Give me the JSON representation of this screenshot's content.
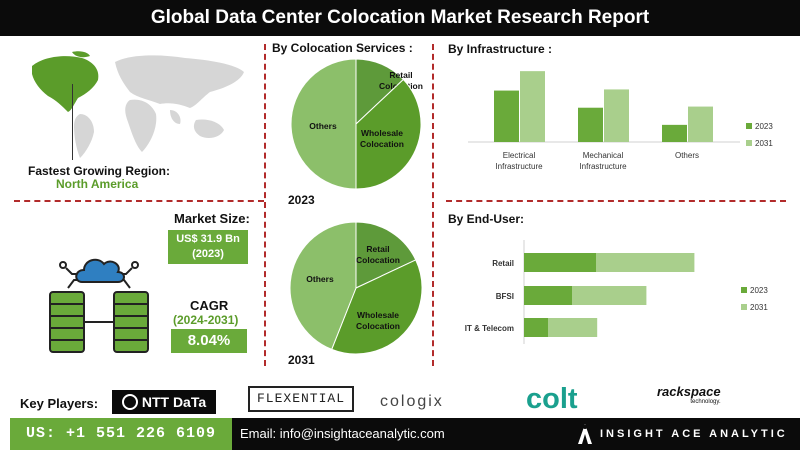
{
  "title": "Global Data Center Colocation Market Research Report",
  "region": {
    "label": "Fastest Growing Region:",
    "value": "North America"
  },
  "market_size": {
    "label": "Market Size:",
    "value_line1": "US$ 31.9 Bn",
    "value_line2": "(2023)"
  },
  "cagr": {
    "label": "CAGR",
    "period": "(2024-2031)",
    "value": "8.04%"
  },
  "key_players_label": "Key Players:",
  "logos": {
    "ntt": "NTT DaTa",
    "flexential": "FLEXENTIAL",
    "cologix": "cologix",
    "colt": "colt",
    "rackspace": "rackspace",
    "rackspace_sub": "technology."
  },
  "footer": {
    "phone": "US: +1 551 226 6109",
    "email": "Email: info@insightaceanalytic.com",
    "brand": "INSIGHT ACE ANALYTIC"
  },
  "colors": {
    "dark_green": "#6aaa3a",
    "mid_green": "#5b9c2a",
    "light_green": "#a9cf8c",
    "pie_others": "#8cbf6a",
    "pie_retail": "#5e9a3a",
    "divider": "#b22b2b"
  },
  "chart_data": [
    {
      "type": "pie",
      "title": "By Colocation Services :",
      "year_label": "2023",
      "labels": [
        "Retail Colocation",
        "Wholesale Colocation",
        "Others"
      ],
      "values": [
        13,
        37,
        50
      ]
    },
    {
      "type": "pie",
      "year_label": "2031",
      "labels": [
        "Retail Colocation",
        "Wholesale Colocation",
        "Others"
      ],
      "values": [
        18,
        38,
        44
      ]
    },
    {
      "type": "bar",
      "title": "By Infrastructure :",
      "categories": [
        "Electrical Infrastructure",
        "Mechanical Infrastructure",
        "Others"
      ],
      "series": [
        {
          "name": "2023",
          "values": [
            45,
            30,
            15
          ]
        },
        {
          "name": "2031",
          "values": [
            62,
            46,
            31
          ]
        }
      ],
      "ylim": [
        0,
        70
      ],
      "legend": "right"
    },
    {
      "type": "bar",
      "orientation": "horizontal",
      "stacked": true,
      "title": "By End-User:",
      "categories": [
        "Retail",
        "BFSI",
        "IT & Telecom"
      ],
      "series": [
        {
          "name": "2023",
          "values": [
            60,
            40,
            20
          ]
        },
        {
          "name": "2031",
          "values": [
            82,
            62,
            41
          ]
        }
      ],
      "xlim": [
        0,
        200
      ],
      "legend": "right"
    }
  ]
}
